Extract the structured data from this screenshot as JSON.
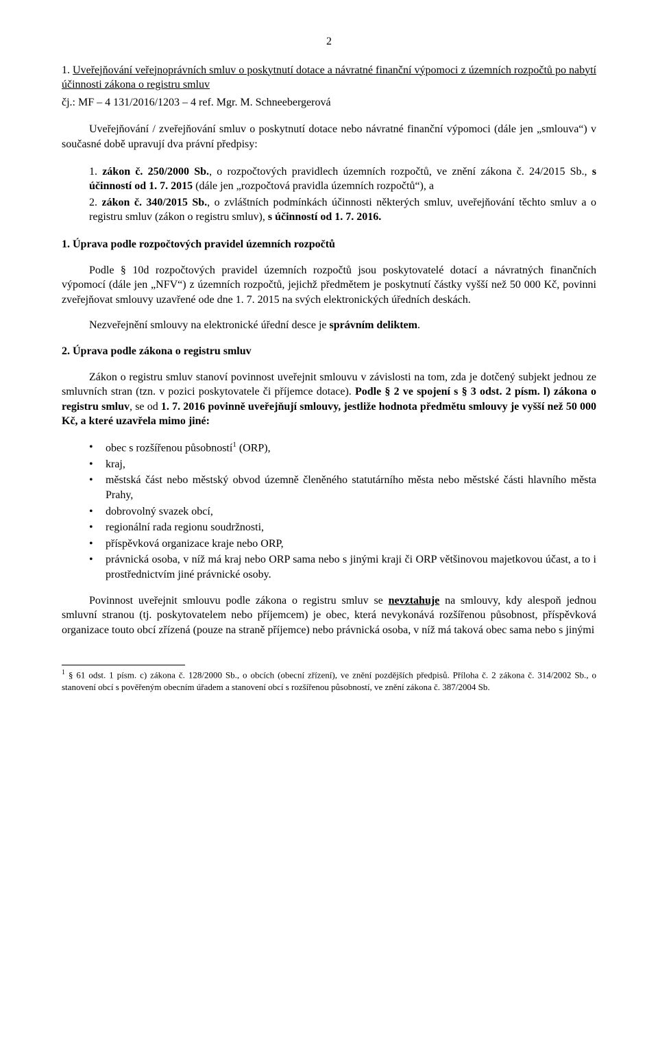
{
  "page_number": "2",
  "title_part1": "1. ",
  "title_underline": "Uveřejňování veřejnoprávních smluv o poskytnutí dotace a návratné finanční výpomoci z územních rozpočtů po nabytí účinnosti zákona o registru smluv",
  "subtitle": "čj.: MF – 4 131/2016/1203 – 4 ref. Mgr. M. Schneebergerová",
  "intro": "Uveřejňování / zveřejňování smluv o poskytnutí dotace nebo návratné finanční výpomoci (dále jen „smlouva“) v současné době upravují dva právní předpisy:",
  "list_items": [
    {
      "num": "1.",
      "bold1": "zákon č. 250/2000 Sb.",
      "text1": ", o rozpočtových pravidlech územních rozpočtů, ve znění zákona č. 24/2015 Sb., ",
      "bold2": "s účinností od 1. 7. 2015",
      "text2": " (dále jen „rozpočtová pravidla územních rozpočtů“), a"
    },
    {
      "num": "2.",
      "bold1": "zákon č. 340/2015 Sb.",
      "text1": ", o zvláštních podmínkách účinnosti některých smluv, uveřejňování těchto smluv a o registru smluv (zákon o registru smluv), ",
      "bold2": "s účinností od 1. 7. 2016.",
      "text2": ""
    }
  ],
  "section1_heading": "1. Úprava podle rozpočtových pravidel územních rozpočtů",
  "section1_p1": "Podle § 10d rozpočtových pravidel územních rozpočtů jsou poskytovatelé dotací a návratných finančních výpomocí (dále jen „NFV“) z územních rozpočtů, jejichž předmětem je poskytnutí částky vyšší než 50 000 Kč, povinni zveřejňovat smlouvy uzavřené ode dne 1. 7. 2015 na svých elektronických úředních deskách.",
  "section1_p2_pre": "Nezveřejnění smlouvy na elektronické úřední desce je ",
  "section1_p2_bold": "správním deliktem",
  "section1_p2_post": ".",
  "section2_heading": "2. Úprava podle zákona o registru smluv",
  "section2_p1": "Zákon o registru smluv stanoví povinnost uveřejnit smlouvu v závislosti na tom, zda je dotčený subjekt jednou ze smluvních stran (tzn. v pozici poskytovatele či příjemce dotace). ",
  "section2_p1_bold": "Podle § 2 ve spojení s § 3 odst. 2 písm. l) zákona o registru smluv",
  "section2_p1_mid": ", se od ",
  "section2_p1_bold2": "1. 7. 2016 povinně uveřejňují smlouvy, jestliže hodnota předmětu smlouvy je vyšší než 50 000 Kč, a které uzavřela mimo jiné:",
  "bullets": [
    {
      "text": "obec s rozšířenou působností",
      "sup": "1",
      "post": " (ORP),"
    },
    {
      "text": "kraj,",
      "sup": "",
      "post": ""
    },
    {
      "text": "městská část nebo městský obvod územně členěného statutárního města nebo městské části hlavního města Prahy,",
      "sup": "",
      "post": ""
    },
    {
      "text": "dobrovolný svazek obcí,",
      "sup": "",
      "post": ""
    },
    {
      "text": "regionální rada regionu soudržnosti,",
      "sup": "",
      "post": ""
    },
    {
      "text": "příspěvková organizace kraje nebo ORP,",
      "sup": "",
      "post": ""
    },
    {
      "text": "právnická osoba, v níž má kraj nebo ORP sama nebo s jinými kraji či ORP většinovou majetkovou účast, a to i prostřednictvím jiné právnické osoby.",
      "sup": "",
      "post": ""
    }
  ],
  "section2_p2_pre": "Povinnost uveřejnit smlouvu podle zákona o registru smluv se ",
  "section2_p2_under_bold": "nevztahuje",
  "section2_p2_post": " na smlouvy, kdy alespoň jednou smluvní stranou (tj. poskytovatelem nebo příjemcem) je obec, která nevykonává rozšířenou působnost, příspěvková organizace touto obcí zřízená (pouze na straně příjemce) nebo právnická osoba, v níž má taková obec sama nebo s jinými",
  "footnote_sup": "1",
  "footnote_text": " § 61 odst. 1 písm. c) zákona č. 128/2000 Sb., o obcích (obecní zřízení), ve znění pozdějších předpisů. Příloha č. 2 zákona č. 314/2002 Sb., o stanovení obcí s pověřeným obecním úřadem a stanovení obcí s rozšířenou působností, ve znění zákona č. 387/2004 Sb."
}
